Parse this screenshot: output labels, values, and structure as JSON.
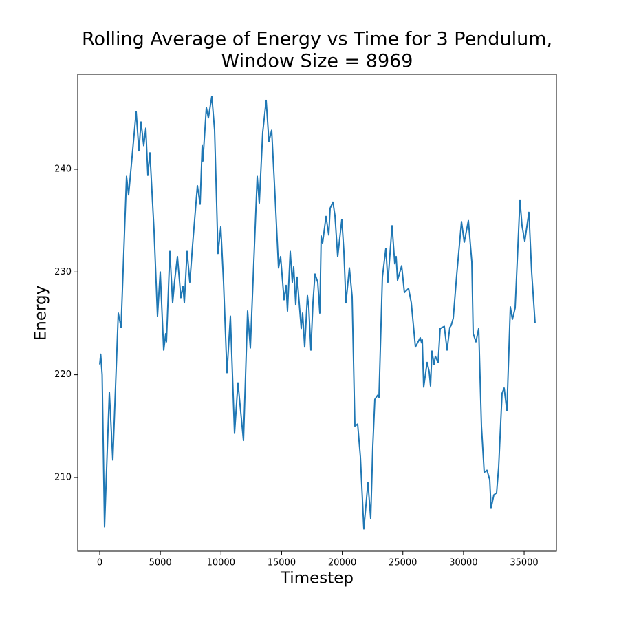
{
  "chart_data": {
    "type": "line",
    "title": [
      "Rolling Average of Energy vs Time for 3 Pendulum,",
      "Window Size = 8969"
    ],
    "x_label": "Timestep",
    "y_label": "Energy",
    "xlim": [
      -1815,
      37664
    ],
    "ylim": [
      202.83,
      249.24
    ],
    "xticks": [
      0,
      5000,
      10000,
      15000,
      20000,
      25000,
      30000,
      35000
    ],
    "yticks": [
      210,
      220,
      230,
      240
    ],
    "grid": false,
    "x": [
      0,
      80,
      200,
      397,
      794,
      1078,
      1531,
      1758,
      2212,
      2382,
      3006,
      3233,
      3403,
      3630,
      3800,
      3970,
      4140,
      4481,
      4764,
      4991,
      5275,
      5445,
      5502,
      5786,
      6013,
      6183,
      6410,
      6694,
      6864,
      6977,
      7204,
      7431,
      7657,
      8055,
      8281,
      8452,
      8508,
      8792,
      8962,
      9245,
      9473,
      9756,
      9983,
      10210,
      10494,
      10777,
      11117,
      11401,
      11855,
      12195,
      12422,
      12989,
      13159,
      13443,
      13727,
      13954,
      14180,
      14464,
      14747,
      14917,
      15201,
      15371,
      15485,
      15712,
      15882,
      15995,
      16165,
      16279,
      16449,
      16619,
      16732,
      16903,
      17130,
      17243,
      17414,
      17584,
      17754,
      17981,
      18151,
      18264,
      18378,
      18662,
      18888,
      19002,
      19229,
      19399,
      19626,
      19796,
      19966,
      20136,
      20306,
      20590,
      20817,
      21044,
      21271,
      21498,
      21781,
      22121,
      22348,
      22518,
      22688,
      22915,
      23029,
      23312,
      23596,
      23766,
      24107,
      24334,
      24447,
      24560,
      24900,
      25127,
      25468,
      25695,
      26035,
      26432,
      26545,
      26602,
      26716,
      26999,
      27169,
      27283,
      27397,
      27567,
      27680,
      27907,
      28077,
      28418,
      28645,
      28872,
      28985,
      29155,
      29439,
      29836,
      30063,
      30403,
      30687,
      30800,
      31027,
      31254,
      31481,
      31708,
      31935,
      32162,
      32275,
      32502,
      32729,
      32899,
      33182,
      33352,
      33579,
      33863,
      34033,
      34260,
      34657,
      34827,
      35054,
      35394,
      35621,
      35905
    ],
    "series": [
      {
        "name": "Energy",
        "color": "#1f77b4",
        "values": [
          221,
          222,
          220,
          205.2,
          218.3,
          211.7,
          226,
          224.6,
          239.3,
          237.5,
          245.6,
          241.8,
          244.6,
          242.3,
          244,
          239.4,
          241.6,
          234,
          225.7,
          230,
          222.4,
          224,
          223.2,
          232,
          227,
          229.2,
          231.5,
          227.5,
          228.6,
          227,
          232,
          229,
          232.6,
          238.4,
          236.6,
          242.3,
          240.8,
          246,
          245,
          247.1,
          243.8,
          231.8,
          234.4,
          229,
          220.2,
          225.7,
          214.3,
          219.2,
          213.6,
          226.2,
          222.6,
          239.3,
          236.7,
          243.6,
          246.7,
          242.7,
          243.8,
          237.3,
          230.4,
          231.5,
          227.3,
          228.7,
          226.2,
          232,
          229,
          230.5,
          226.8,
          229.5,
          227,
          224.5,
          226,
          222.7,
          227.7,
          226.5,
          222.4,
          227,
          229.8,
          229,
          226,
          233.5,
          232.8,
          235.4,
          233.6,
          236.2,
          236.8,
          235.5,
          231.5,
          233.3,
          235.1,
          232,
          227,
          230.4,
          227.6,
          215,
          215.2,
          212,
          205,
          209.5,
          206,
          213,
          217.6,
          218,
          217.8,
          229.5,
          232.3,
          229,
          234.5,
          230.8,
          231.5,
          229.2,
          230.6,
          228,
          228.4,
          227,
          222.7,
          223.6,
          223.1,
          223.4,
          218.8,
          221.2,
          220.3,
          218.9,
          222.3,
          221,
          221.8,
          221.2,
          224.5,
          224.7,
          222.4,
          224.6,
          224.8,
          225.5,
          229.7,
          234.9,
          232.9,
          235,
          231,
          224,
          223.2,
          224.5,
          215,
          210.5,
          210.7,
          209.8,
          207,
          208.3,
          208.5,
          211,
          218.2,
          218.7,
          216.5,
          226.6,
          225.4,
          226.5,
          237,
          234.5,
          233,
          235.8,
          230,
          225
        ]
      }
    ]
  }
}
